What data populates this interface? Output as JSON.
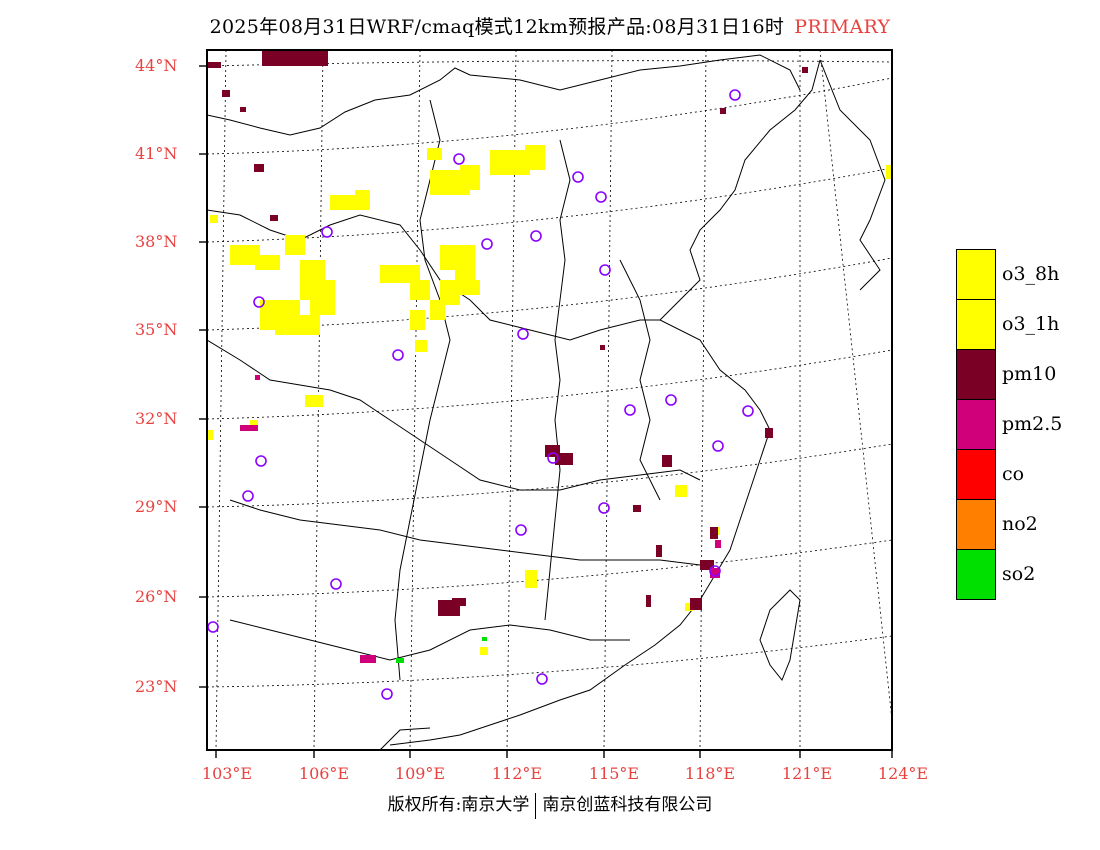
{
  "title": {
    "main": "2025年08月31日WRF/cmaq模式12km预报产品:08月31日16时",
    "tag": "PRIMARY"
  },
  "colors": {
    "label_red": "#e8423f",
    "o3_8h": "#ffff00",
    "o3_1h": "#ffff00",
    "pm10": "#7a0026",
    "pm25": "#d0007a",
    "co": "#ff0000",
    "no2": "#ff8000",
    "so2": "#00e000",
    "station": "#8b00ff"
  },
  "map": {
    "lat_labels": [
      "44°N",
      "41°N",
      "38°N",
      "35°N",
      "32°N",
      "29°N",
      "26°N",
      "23°N"
    ],
    "lon_labels": [
      "103°E",
      "106°E",
      "109°E",
      "112°E",
      "115°E",
      "118°E",
      "121°E",
      "124°E"
    ]
  },
  "legend": [
    {
      "label": "o3_8h",
      "color": "#ffff00"
    },
    {
      "label": "o3_1h",
      "color": "#ffff00"
    },
    {
      "label": "pm10",
      "color": "#7a0026"
    },
    {
      "label": "pm2.5",
      "color": "#d0007a"
    },
    {
      "label": "co",
      "color": "#ff0000"
    },
    {
      "label": "no2",
      "color": "#ff8000"
    },
    {
      "label": "so2",
      "color": "#00e000"
    }
  ],
  "footer": {
    "left": "版权所有:南京大学",
    "right": "南京创蓝科技有限公司"
  }
}
